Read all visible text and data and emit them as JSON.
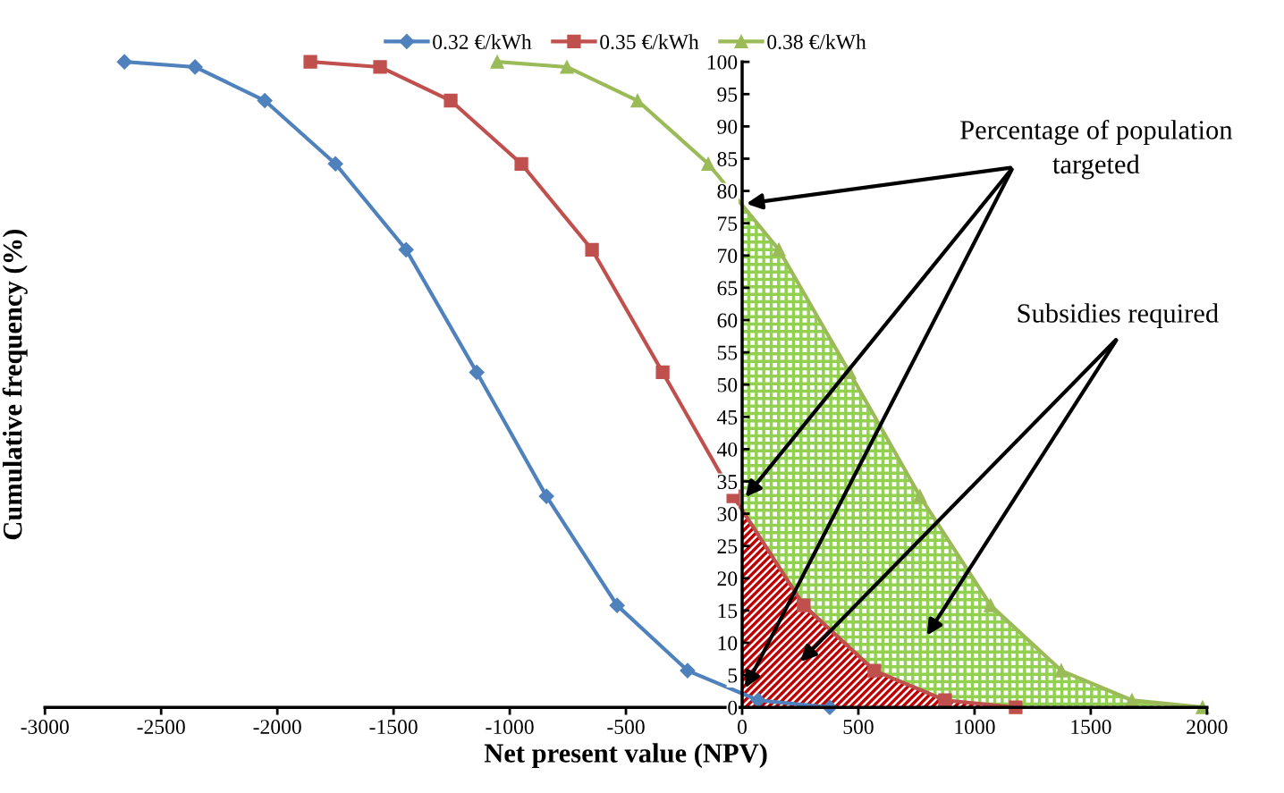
{
  "chart_data": {
    "type": "line",
    "xlabel": "Net present value (NPV)",
    "ylabel": "Cumulative frequency (%)",
    "xlim": [
      -3000,
      2000
    ],
    "xticks": [
      -3000,
      -2500,
      -2000,
      -1500,
      -1000,
      -500,
      0,
      500,
      1000,
      1500,
      2000
    ],
    "ylim": [
      0,
      100
    ],
    "yticks": [
      0,
      5,
      10,
      15,
      20,
      25,
      30,
      35,
      40,
      45,
      50,
      55,
      60,
      65,
      70,
      75,
      80,
      85,
      90,
      95,
      100
    ],
    "grid": false,
    "legend": "top",
    "series": [
      {
        "type": "area",
        "color": "#92d050",
        "x": [
          0,
          158,
          462,
          765,
          1069,
          1373,
          1677,
          1981
        ],
        "values": [
          77.5,
          70.9,
          51.9,
          32.7,
          15.8,
          5.7,
          1.1,
          0
        ]
      },
      {
        "type": "area",
        "color": "#c00000",
        "x": [
          0,
          265,
          569,
          873,
          1177
        ],
        "values": [
          31,
          15.8,
          5.7,
          1.1,
          0
        ]
      },
      {
        "name": "0.32 €/kWh",
        "color": "#4f81bd",
        "marker": "diamond",
        "x": [
          -2658,
          -2354,
          -2054,
          -1750,
          -1446,
          -1142,
          -842,
          -538,
          -235,
          69,
          377
        ],
        "values": [
          100,
          99.2,
          94,
          84.2,
          70.9,
          51.9,
          32.7,
          15.8,
          5.7,
          1.1,
          0
        ]
      },
      {
        "name": "0.35 €/kWh",
        "color": "#c0504d",
        "marker": "square",
        "x": [
          -1858,
          -1558,
          -1254,
          -950,
          -646,
          -342,
          -38,
          265,
          569,
          873,
          1177
        ],
        "values": [
          100,
          99.2,
          94,
          84.2,
          70.9,
          51.9,
          32.7,
          15.8,
          5.7,
          1.1,
          0
        ]
      },
      {
        "name": "0.38 €/kWh",
        "color": "#9bbb59",
        "marker": "triangle",
        "x": [
          -1054,
          -754,
          -450,
          -146,
          158,
          462,
          765,
          1069,
          1373,
          1677,
          1981
        ],
        "values": [
          100,
          99.2,
          94,
          84.2,
          70.9,
          51.9,
          32.7,
          15.8,
          5.7,
          1.1,
          0
        ]
      }
    ],
    "annotations": [
      "Percentage of population\ntargeted",
      "Subsidies required"
    ]
  }
}
